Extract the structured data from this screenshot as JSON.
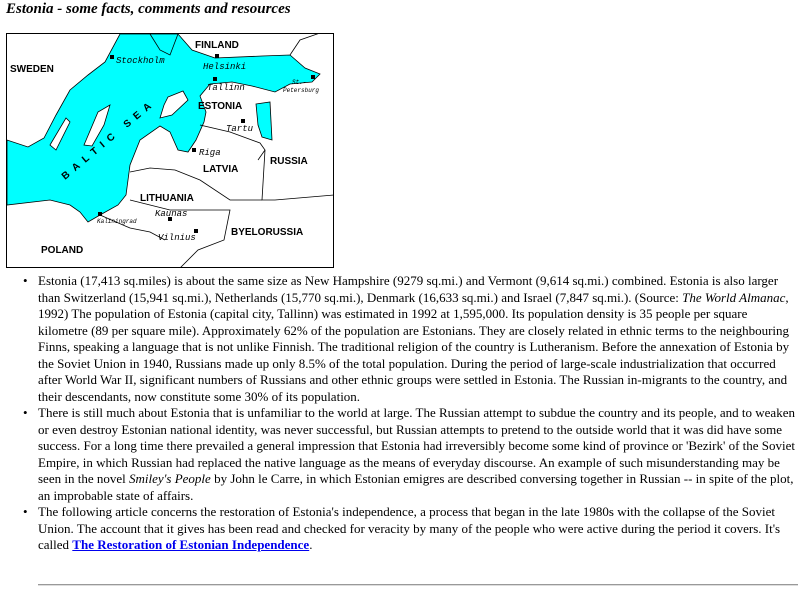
{
  "title": "Estonia - some facts, comments and resources",
  "map": {
    "sea_color": "#00ffff",
    "countries": [
      "FINLAND",
      "SWEDEN",
      "ESTONIA",
      "LATVIA",
      "RUSSIA",
      "LITHUANIA",
      "BYELORUSSIA",
      "POLAND"
    ],
    "cities": [
      "Stockholm",
      "Helsinki",
      "Tallinn",
      "St.-",
      "Petersburg",
      "Tartu",
      "Riga",
      "Kaunas",
      "Kaliningrad",
      "Vilnius"
    ],
    "sea": "BALTIC SEA"
  },
  "items": [
    {
      "p1": "Estonia (17,413 sq.miles) is about the same size as New Hampshire (9279 sq.mi.) and Vermont (9,614 sq.mi.) combined. Estonia is also larger than Switzerland (15,941 sq.mi.), Netherlands (15,770 sq.mi.), Denmark (16,633 sq.mi.) and Israel (7,847 sq.mi.). (Source: ",
      "em": "The World Almanac",
      "p2": ", 1992) The population of Estonia (capital city, Tallinn) was estimated in 1992 at 1,595,000. Its population density is 35 people per square kilometre (89 per square mile). Approximately 62% of the population are Estonians. They are closely related in ethnic terms to the neighbouring Finns, speaking a language that is not unlike Finnish. The traditional religion of the country is Lutheranism. Before the annexation of Estonia by the Soviet Union in 1940, Russians made up only 8.5% of the total population. During the period of large-scale industrialization that occurred after World War II, significant numbers of Russians and other ethnic groups were settled in Estonia. The Russian in-migrants to the country, and their descendants, now constitute some 30% of its population."
    },
    {
      "p1": "There is still much about Estonia that is unfamiliar to the world at large. The Russian attempt to subdue the country and its people, and to weaken or even destroy Estonian national identity, was never successful, but Russian attempts to pretend to the outside world that it was did have some success. For a long time there prevailed a general impression that Estonia had irreversibly become some kind of province or 'Bezirk' of the Soviet Empire, in which Russian had replaced the native language as the means of everyday discourse. An example of such misunderstanding may be seen in the novel ",
      "em": "Smiley's People",
      "p2": " by John le Carre, in which Estonian emigres are described conversing together in Russian -- in spite of the plot, an improbable state of affairs."
    },
    {
      "p1": "The following article concerns the restoration of Estonia's independence, a process that began in the late 1980s with the collapse of the Soviet Union. The account that it gives has been read and checked for veracity by many of the people who were active during the period it covers. It's called ",
      "link": "The Restoration of Estonian Independence",
      "p2": "."
    }
  ]
}
